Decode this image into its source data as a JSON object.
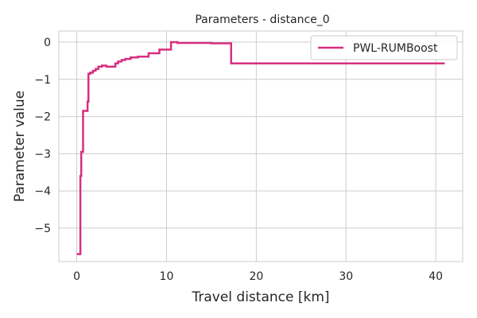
{
  "chart_data": {
    "type": "line",
    "title": "Parameters - distance_0",
    "xlabel": "Travel distance [km]",
    "ylabel": "Parameter value",
    "xlim": [
      -2,
      43
    ],
    "ylim": [
      -5.9,
      0.3
    ],
    "xticks": [
      0,
      10,
      20,
      30,
      40
    ],
    "yticks": [
      0,
      -1,
      -2,
      -3,
      -4,
      -5
    ],
    "ytick_labels": [
      "0",
      "−1",
      "−2",
      "−3",
      "−4",
      "−5"
    ],
    "grid": true,
    "legend_position": "top-right",
    "series": [
      {
        "name": "PWL-RUMBoost",
        "color": "#d62f7f",
        "step": true,
        "x": [
          0,
          0.4,
          0.5,
          0.7,
          1.2,
          1.3,
          1.5,
          1.8,
          2.1,
          2.4,
          2.8,
          3.3,
          4.3,
          4.6,
          5.0,
          5.4,
          6.0,
          6.8,
          8.0,
          9.2,
          10.5,
          11.2,
          15.0,
          17.2,
          41.0
        ],
        "y": [
          -5.7,
          -3.6,
          -2.95,
          -1.85,
          -1.6,
          -0.85,
          -0.82,
          -0.77,
          -0.72,
          -0.66,
          -0.63,
          -0.66,
          -0.57,
          -0.52,
          -0.48,
          -0.45,
          -0.41,
          -0.39,
          -0.3,
          -0.2,
          0.0,
          -0.02,
          -0.03,
          -0.57,
          -0.57
        ]
      }
    ]
  }
}
